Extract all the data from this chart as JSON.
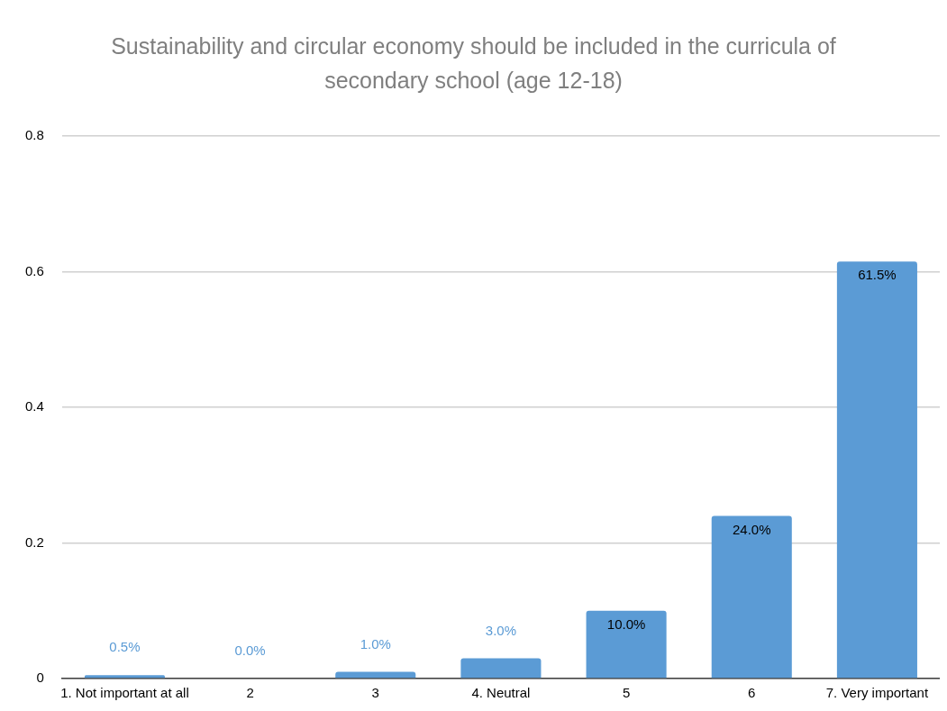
{
  "chart_data": {
    "type": "bar",
    "title": "Sustainability and circular economy should be included in the curricula of secondary school (age 12-18)",
    "categories": [
      "1. Not important at all",
      "2",
      "3",
      "4. Neutral",
      "5",
      "6",
      "7. Very important"
    ],
    "values": [
      0.005,
      0,
      0.01,
      0.03,
      0.1,
      0.24,
      0.615
    ],
    "value_labels": [
      "0.5%",
      "0.0%",
      "1.0%",
      "3.0%",
      "10.0%",
      "24.0%",
      "61.5%"
    ],
    "color": "#5b9bd5",
    "ylim": [
      0,
      0.8
    ],
    "yticks": [
      0,
      0.2,
      0.4,
      0.6,
      0.8
    ],
    "grid": "y",
    "legend": false
  }
}
